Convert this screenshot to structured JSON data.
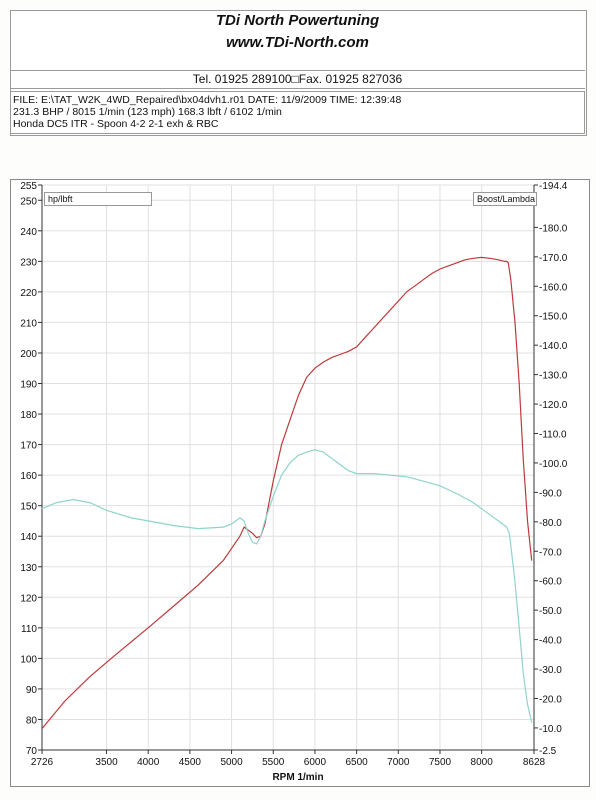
{
  "header": {
    "title": "TDi North Powertuning",
    "url": "www.TDi-North.com",
    "contact": "Tel. 01925 289100□Fax. 01925 827036"
  },
  "info": {
    "file_line": "FILE: E:\\TAT_W2K_4WD_Repaired\\bx04dvh1.r01  DATE: 11/9/2009  TIME: 12:39:48",
    "result_line": "231.3 BHP / 8015 1/min (123 mph)   168.3 lbft / 6102 1/min",
    "car_line": "Honda DC5 ITR - Spoon 4-2 2-1 exh & RBC"
  },
  "chart_data": {
    "type": "line",
    "left_axis_label": "hp/lbft",
    "right_axis_label": "Boost/Lambda",
    "xlabel": "RPM  1/min",
    "xlim": [
      2726,
      8628
    ],
    "ylim_left": [
      70,
      255
    ],
    "ylim_right": [
      -2.5,
      -194.4
    ],
    "x_ticks": [
      "2726",
      "3500",
      "4000",
      "4500",
      "5000",
      "5500",
      "6000",
      "6500",
      "7000",
      "7500",
      "8000",
      "8628"
    ],
    "left_ticks": [
      "70",
      "80",
      "90",
      "100",
      "110",
      "120",
      "130",
      "140",
      "150",
      "160",
      "170",
      "180",
      "190",
      "200",
      "210",
      "220",
      "230",
      "240",
      "250",
      "255"
    ],
    "right_ticks": [
      "-2.5",
      "-10.0",
      "-20.0",
      "-30.0",
      "-40.0",
      "-50.0",
      "-60.0",
      "-70.0",
      "-80.0",
      "-90.0",
      "-100.0",
      "-110.0",
      "-120.0",
      "-130.0",
      "-140.0",
      "-150.0",
      "-160.0",
      "-170.0",
      "-180.0",
      "-194.4"
    ],
    "series": [
      {
        "color": "#c0393b",
        "x": [
          2726,
          3000,
          3300,
          3600,
          4000,
          4300,
          4600,
          4900,
          5100,
          5150,
          5250,
          5300,
          5350,
          5400,
          5500,
          5600,
          5700,
          5800,
          5900,
          6000,
          6100,
          6200,
          6300,
          6400,
          6500,
          6600,
          6700,
          6800,
          6900,
          7000,
          7100,
          7200,
          7300,
          7400,
          7500,
          7600,
          7700,
          7800,
          7900,
          8000,
          8100,
          8200,
          8280,
          8300,
          8320,
          8350,
          8400,
          8450,
          8500,
          8550,
          8600
        ],
        "y": [
          77,
          86,
          94,
          101,
          110,
          117,
          124,
          132,
          140,
          143,
          141,
          139.5,
          140,
          144,
          158,
          170,
          178,
          186,
          192,
          195,
          197,
          198.5,
          199.5,
          200.5,
          202,
          205,
          208,
          211,
          214,
          217,
          220,
          222,
          224,
          226,
          227.5,
          228.5,
          229.5,
          230.5,
          231,
          231.3,
          231,
          230.5,
          230,
          230,
          229.5,
          224,
          210,
          190,
          165,
          145,
          132
        ]
      },
      {
        "color": "#8fd4cc",
        "x": [
          2726,
          2900,
          3100,
          3300,
          3500,
          3800,
          4000,
          4300,
          4600,
          4900,
          5000,
          5100,
          5150,
          5200,
          5250,
          5300,
          5350,
          5400,
          5500,
          5600,
          5700,
          5800,
          5900,
          6000,
          6100,
          6200,
          6300,
          6400,
          6500,
          6700,
          6900,
          7100,
          7300,
          7500,
          7700,
          7900,
          8000,
          8100,
          8200,
          8250,
          8300,
          8330,
          8350,
          8400,
          8450,
          8500,
          8550,
          8600
        ],
        "y": [
          149,
          151,
          152,
          151,
          148.5,
          146,
          145,
          143.5,
          142.5,
          143,
          144,
          146,
          145,
          141,
          138,
          137.5,
          140,
          145,
          153,
          160,
          164,
          166.5,
          167.5,
          168.3,
          167.5,
          165.5,
          163.5,
          161.5,
          160.5,
          160.5,
          160,
          159.5,
          158,
          156.5,
          154,
          151,
          149,
          147,
          145,
          144,
          143,
          141,
          137,
          125,
          110,
          95,
          85,
          79
        ]
      }
    ]
  }
}
